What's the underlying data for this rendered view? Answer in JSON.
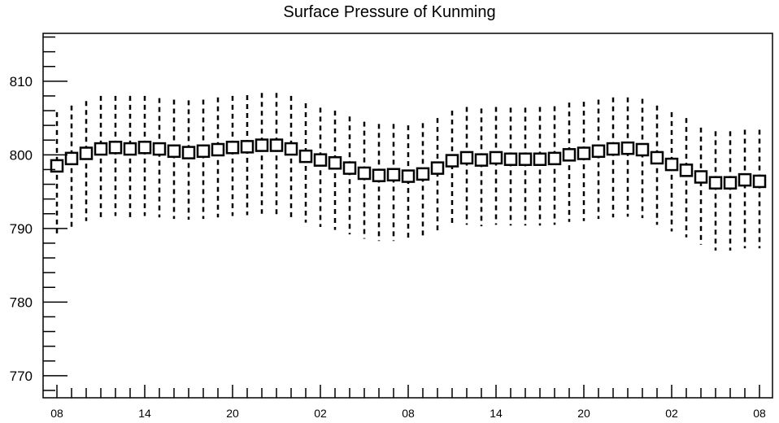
{
  "chart_data": {
    "type": "scatter",
    "title": "Surface Pressure of Kunming",
    "xlabel": "",
    "ylabel": "",
    "ylim": [
      767,
      816.5
    ],
    "yticks": [
      770,
      780,
      790,
      800,
      810
    ],
    "x_tick_labels": [
      "08",
      "14",
      "20",
      "02",
      "08",
      "14",
      "20",
      "02",
      "08"
    ],
    "x_tick_every": 6,
    "x_count": 49,
    "grid": false,
    "marker": "open-square",
    "error_bar_style": "dashed",
    "series": [
      {
        "mean": [
          798.5,
          799.5,
          800.2,
          800.8,
          801.0,
          800.8,
          801.0,
          800.8,
          800.5,
          800.3,
          800.5,
          800.7,
          801.0,
          801.1,
          801.3,
          801.3,
          800.8,
          799.8,
          799.3,
          798.9,
          798.2,
          797.5,
          797.2,
          797.3,
          797.1,
          797.4,
          798.2,
          799.2,
          799.6,
          799.3,
          799.6,
          799.4,
          799.4,
          799.4,
          799.5,
          800.0,
          800.2,
          800.5,
          800.8,
          800.9,
          800.7,
          799.6,
          798.7,
          797.9,
          797.0,
          796.2,
          796.2,
          796.6,
          796.4
        ],
        "upper": [
          805.8,
          806.7,
          807.3,
          808.0,
          808.0,
          808.0,
          808.0,
          807.7,
          807.5,
          807.4,
          807.5,
          807.8,
          808.0,
          808.1,
          808.4,
          808.4,
          808.0,
          807.0,
          806.4,
          806.0,
          805.2,
          804.5,
          804.2,
          804.2,
          804.0,
          804.3,
          805.0,
          806.0,
          806.5,
          806.3,
          806.5,
          806.4,
          806.4,
          806.5,
          806.6,
          807.1,
          807.2,
          807.5,
          807.8,
          807.8,
          807.6,
          806.7,
          805.8,
          805.0,
          803.7,
          803.2,
          803.2,
          803.4,
          803.4
        ],
        "lower": [
          789.3,
          790.2,
          791.0,
          791.5,
          791.7,
          791.5,
          791.7,
          791.5,
          791.3,
          791.2,
          791.3,
          791.5,
          791.7,
          791.8,
          792.0,
          791.9,
          791.5,
          790.8,
          790.2,
          789.8,
          789.2,
          788.6,
          788.3,
          788.3,
          788.2,
          788.5,
          789.2,
          790.2,
          790.5,
          790.3,
          790.5,
          790.4,
          790.4,
          790.4,
          790.5,
          790.9,
          791.0,
          791.3,
          791.5,
          791.6,
          791.4,
          790.5,
          789.6,
          788.8,
          787.8,
          787.0,
          787.0,
          787.3,
          787.3
        ]
      }
    ]
  }
}
